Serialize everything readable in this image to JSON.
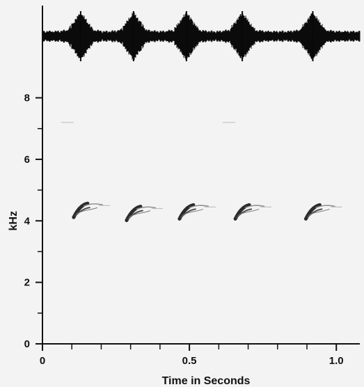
{
  "chart_data": {
    "type": "spectrogram",
    "title": "",
    "xlabel": "Time in Seconds",
    "ylabel": "kHz",
    "xlim": [
      0,
      1.08
    ],
    "ylim": [
      0,
      11
    ],
    "x_tick_labels": [
      "0",
      "0.5",
      "1.0"
    ],
    "x_tick_values": [
      0,
      0.5,
      1.0
    ],
    "x_minor_tick_values": [
      0.1,
      0.2,
      0.3,
      0.4,
      0.6,
      0.7,
      0.8,
      0.9
    ],
    "y_tick_labels": [
      "0",
      "2",
      "4",
      "6",
      "8"
    ],
    "y_tick_values": [
      0,
      2,
      4,
      6,
      8
    ],
    "y_minor_tick_values": [
      1,
      3,
      5,
      7
    ],
    "notes": [
      {
        "x": 0.13,
        "y": 4.25
      },
      {
        "x": 0.31,
        "y": 4.15
      },
      {
        "x": 0.49,
        "y": 4.2
      },
      {
        "x": 0.68,
        "y": 4.2
      },
      {
        "x": 0.92,
        "y": 4.2
      }
    ],
    "waveform_bursts": [
      0.13,
      0.31,
      0.49,
      0.68,
      0.92
    ],
    "faint_marks": [
      {
        "x": 0.08,
        "y": 7.2
      },
      {
        "x": 0.63,
        "y": 7.2
      }
    ],
    "colors": {
      "background": "#f3f3f3",
      "ink": "#111111",
      "note_dark": "#2b2b2b",
      "note_light": "#8a8a8a"
    }
  }
}
